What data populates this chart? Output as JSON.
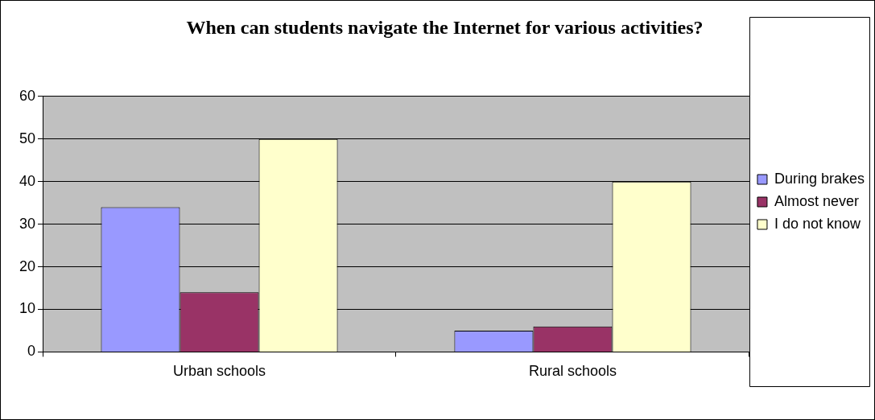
{
  "chart_data": {
    "type": "bar",
    "title": "When can students navigate the Internet for various activities?",
    "categories": [
      "Urban schools",
      "Rural schools"
    ],
    "series": [
      {
        "name": "During brakes",
        "color": "#9999ff",
        "values": [
          34,
          5
        ]
      },
      {
        "name": "Almost never",
        "color": "#993366",
        "values": [
          14,
          6
        ]
      },
      {
        "name": "I do not know",
        "color": "#ffffcc",
        "values": [
          50,
          40
        ]
      }
    ],
    "ylim": [
      0,
      60
    ],
    "yticks": [
      0,
      10,
      20,
      30,
      40,
      50,
      60
    ],
    "grid": "y",
    "legend": "right"
  }
}
